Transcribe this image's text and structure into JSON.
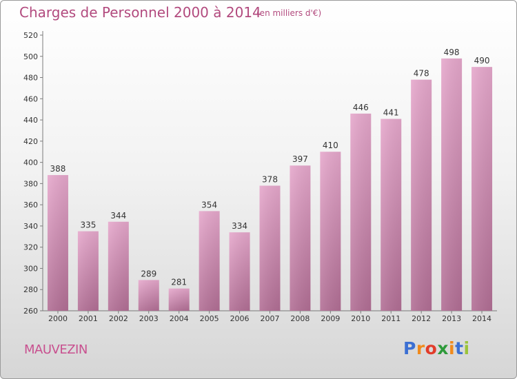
{
  "header": {
    "title": "Charges de Personnel 2000 à 2014",
    "subtitle": "(en milliers d'€)"
  },
  "commune": "MAUVEZIN",
  "logo": {
    "text": "Proxiti",
    "letters": [
      "P",
      "r",
      "o",
      "x",
      "i",
      "t",
      "i"
    ],
    "colors": [
      "#3b6fd3",
      "#f08a1c",
      "#e23c2a",
      "#2d9a3a",
      "#f08a1c",
      "#3b6fd3",
      "#9bc43a"
    ]
  },
  "colors": {
    "bar": "#d98fb9",
    "title": "#b24a7e",
    "commune": "#c8508f"
  },
  "chart_data": {
    "type": "bar",
    "title": "Charges de Personnel 2000 à 2014",
    "subtitle": "(en milliers d'€)",
    "categories": [
      "2000",
      "2001",
      "2002",
      "2003",
      "2004",
      "2005",
      "2006",
      "2007",
      "2008",
      "2009",
      "2010",
      "2011",
      "2012",
      "2013",
      "2014"
    ],
    "values": [
      388,
      335,
      344,
      289,
      281,
      354,
      334,
      378,
      397,
      410,
      446,
      441,
      478,
      498,
      490
    ],
    "ylim": [
      260,
      520
    ],
    "yticks": [
      260,
      280,
      300,
      320,
      340,
      360,
      380,
      400,
      420,
      440,
      460,
      480,
      500,
      520
    ],
    "grid": false,
    "data_labels": true
  }
}
